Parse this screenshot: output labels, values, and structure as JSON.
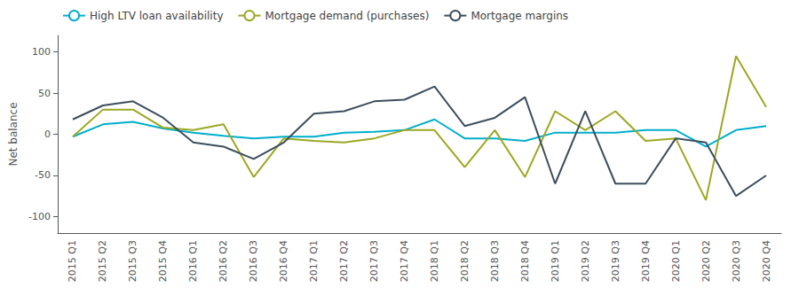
{
  "chart_data": {
    "type": "line",
    "categories": [
      "2015 Q1",
      "2015 Q2",
      "2015 Q3",
      "2015 Q4",
      "2016 Q1",
      "2016 Q2",
      "2016 Q3",
      "2016 Q4",
      "2017 Q1",
      "2017 Q2",
      "2017 Q3",
      "2017 Q4",
      "2018 Q1",
      "2018 Q2",
      "2018 Q3",
      "2018 Q4",
      "2019 Q1",
      "2019 Q2",
      "2019 Q3",
      "2019 Q4",
      "2020 Q1",
      "2020 Q2",
      "2020 Q3",
      "2020 Q4"
    ],
    "series": [
      {
        "name": "High LTV loan availability",
        "color": "#00AECC",
        "values": [
          -3,
          12,
          15,
          7,
          2,
          -2,
          -5,
          -3,
          -3,
          2,
          3,
          5,
          18,
          -5,
          -5,
          -8,
          2,
          2,
          2,
          5,
          5,
          -15,
          5,
          10
        ]
      },
      {
        "name": "Mortgage demand (purchases)",
        "color": "#9BA822",
        "values": [
          -3,
          30,
          30,
          8,
          5,
          12,
          -52,
          -5,
          -8,
          -10,
          -5,
          5,
          5,
          -40,
          5,
          -52,
          28,
          5,
          28,
          -8,
          -5,
          -80,
          95,
          33
        ]
      },
      {
        "name": "Mortgage margins",
        "color": "#3D4D5C",
        "values": [
          18,
          35,
          40,
          20,
          -10,
          -15,
          -30,
          -10,
          25,
          28,
          40,
          42,
          58,
          10,
          20,
          45,
          -60,
          28,
          -60,
          -60,
          -5,
          -10,
          -75,
          -50
        ]
      }
    ],
    "ylabel": "Net balance",
    "ylim": [
      -120,
      120
    ],
    "yticks": [
      -100,
      -50,
      0,
      50,
      100
    ],
    "grid": false,
    "legend": "upper left"
  }
}
